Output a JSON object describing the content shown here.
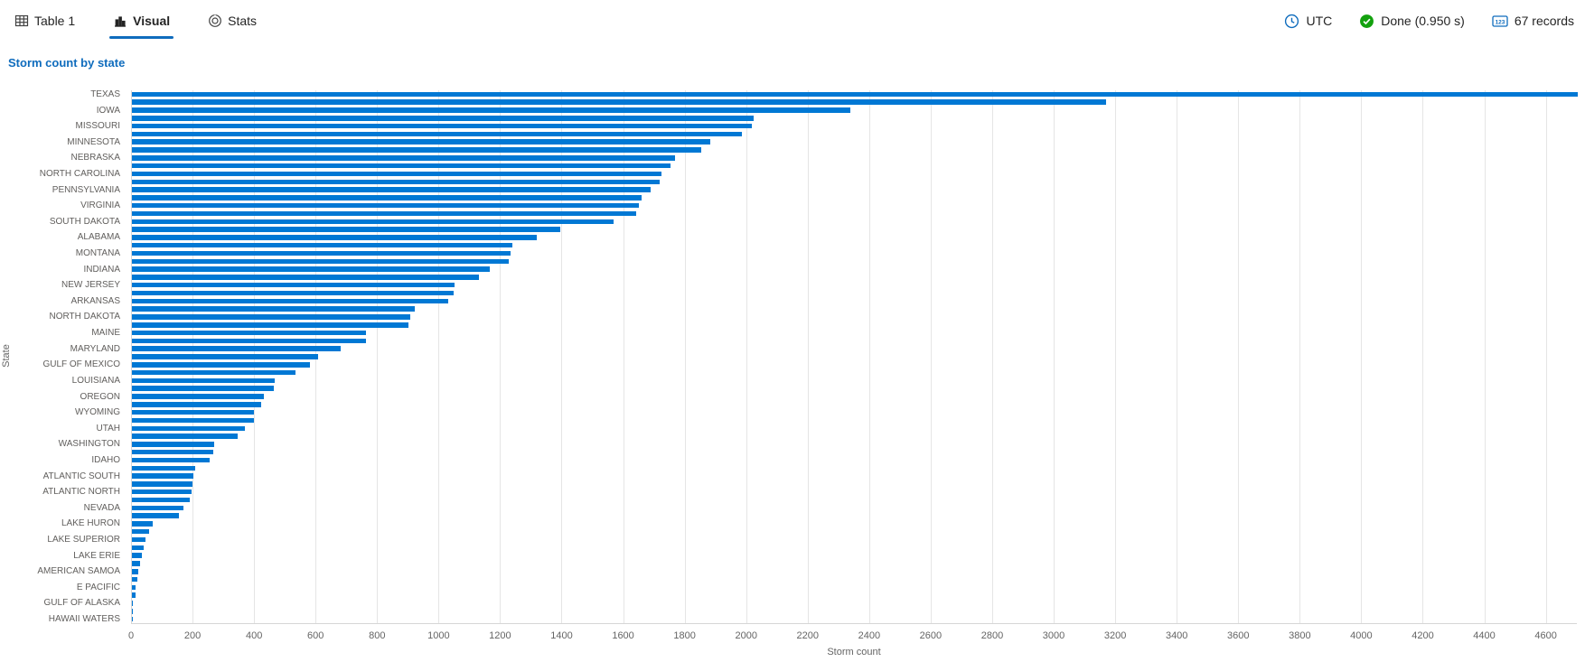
{
  "tabs": {
    "items": [
      {
        "label": "Table 1",
        "icon": "table-icon",
        "active": false
      },
      {
        "label": "Visual",
        "icon": "bar-chart-icon",
        "active": true
      },
      {
        "label": "Stats",
        "icon": "stats-icon",
        "active": false
      }
    ]
  },
  "statusbar": {
    "timezone_label": "UTC",
    "done_label": "Done (0.950 s)",
    "records_label": "67 records"
  },
  "colors": {
    "accent": "#0f6cbd",
    "bar": "#0078d4",
    "done_green": "#13a10e",
    "gridline": "#e5e5e5"
  },
  "chart_data": {
    "type": "bar",
    "orientation": "horizontal",
    "title": "Storm count by state",
    "xlabel": "Storm count",
    "ylabel": "State",
    "xlim": [
      0,
      4701
    ],
    "grid": true,
    "x_ticks": [
      0,
      200,
      400,
      600,
      800,
      1000,
      1200,
      1400,
      1600,
      1800,
      2000,
      2200,
      2400,
      2600,
      2800,
      3000,
      3200,
      3400,
      3600,
      3800,
      4000,
      4200,
      4400,
      4600
    ],
    "bars": [
      {
        "label": "TEXAS",
        "value": 4701
      },
      {
        "label": "",
        "value": 3166
      },
      {
        "label": "IOWA",
        "value": 2337
      },
      {
        "label": "",
        "value": 2022
      },
      {
        "label": "MISSOURI",
        "value": 2016
      },
      {
        "label": "",
        "value": 1983
      },
      {
        "label": "MINNESOTA",
        "value": 1881
      },
      {
        "label": "",
        "value": 1850
      },
      {
        "label": "NEBRASKA",
        "value": 1766
      },
      {
        "label": "",
        "value": 1750
      },
      {
        "label": "NORTH CAROLINA",
        "value": 1721
      },
      {
        "label": "",
        "value": 1716
      },
      {
        "label": "PENNSYLVANIA",
        "value": 1687
      },
      {
        "label": "",
        "value": 1657
      },
      {
        "label": "VIRGINIA",
        "value": 1647
      },
      {
        "label": "",
        "value": 1640
      },
      {
        "label": "SOUTH DAKOTA",
        "value": 1567
      },
      {
        "label": "",
        "value": 1393
      },
      {
        "label": "ALABAMA",
        "value": 1315
      },
      {
        "label": "",
        "value": 1237
      },
      {
        "label": "MONTANA",
        "value": 1230
      },
      {
        "label": "",
        "value": 1224
      },
      {
        "label": "INDIANA",
        "value": 1164
      },
      {
        "label": "",
        "value": 1128
      },
      {
        "label": "NEW JERSEY",
        "value": 1050
      },
      {
        "label": "",
        "value": 1045
      },
      {
        "label": "ARKANSAS",
        "value": 1028
      },
      {
        "label": "",
        "value": 920
      },
      {
        "label": "NORTH DAKOTA",
        "value": 905
      },
      {
        "label": "",
        "value": 900
      },
      {
        "label": "MAINE",
        "value": 762
      },
      {
        "label": "",
        "value": 760
      },
      {
        "label": "MARYLAND",
        "value": 678
      },
      {
        "label": "",
        "value": 605
      },
      {
        "label": "GULF OF MEXICO",
        "value": 580
      },
      {
        "label": "",
        "value": 533
      },
      {
        "label": "LOUISIANA",
        "value": 465
      },
      {
        "label": "",
        "value": 460
      },
      {
        "label": "OREGON",
        "value": 428
      },
      {
        "label": "",
        "value": 420
      },
      {
        "label": "WYOMING",
        "value": 398
      },
      {
        "label": "",
        "value": 396
      },
      {
        "label": "UTAH",
        "value": 366
      },
      {
        "label": "",
        "value": 343
      },
      {
        "label": "WASHINGTON",
        "value": 268
      },
      {
        "label": "",
        "value": 263
      },
      {
        "label": "IDAHO",
        "value": 252
      },
      {
        "label": "",
        "value": 205
      },
      {
        "label": "ATLANTIC SOUTH",
        "value": 200
      },
      {
        "label": "",
        "value": 197
      },
      {
        "label": "ATLANTIC NORTH",
        "value": 193
      },
      {
        "label": "",
        "value": 188
      },
      {
        "label": "NEVADA",
        "value": 168
      },
      {
        "label": "",
        "value": 153
      },
      {
        "label": "LAKE HURON",
        "value": 68
      },
      {
        "label": "",
        "value": 57
      },
      {
        "label": "LAKE SUPERIOR",
        "value": 43
      },
      {
        "label": "",
        "value": 39
      },
      {
        "label": "LAKE ERIE",
        "value": 32
      },
      {
        "label": "",
        "value": 27
      },
      {
        "label": "AMERICAN SAMOA",
        "value": 20
      },
      {
        "label": "",
        "value": 17
      },
      {
        "label": "E PACIFIC",
        "value": 13
      },
      {
        "label": "",
        "value": 12
      },
      {
        "label": "GULF OF ALASKA",
        "value": 4
      },
      {
        "label": "",
        "value": 2
      },
      {
        "label": "HAWAII WATERS",
        "value": 1
      }
    ]
  }
}
